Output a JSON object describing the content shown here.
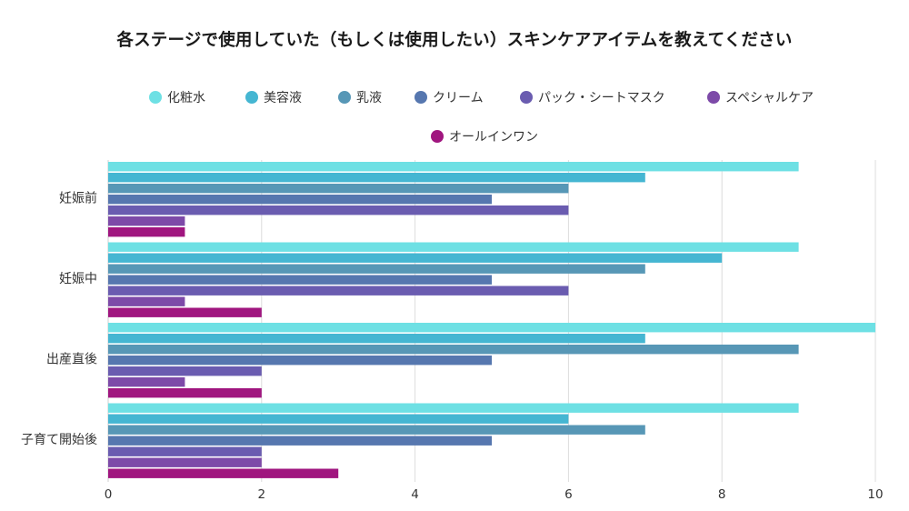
{
  "chart_data": {
    "type": "bar",
    "orientation": "horizontal",
    "title": "各ステージで使用していた（もしくは使用したい）スキンケアアイテムを教えてください",
    "categories": [
      "妊娠前",
      "妊娠中",
      "出産直後",
      "子育て開始後"
    ],
    "series": [
      {
        "name": "化粧水",
        "color": "#6ee0e4",
        "values": [
          9,
          9,
          10,
          9
        ]
      },
      {
        "name": "美容液",
        "color": "#45b6d2",
        "values": [
          7,
          8,
          7,
          6
        ]
      },
      {
        "name": "乳液",
        "color": "#5797b6",
        "values": [
          6,
          7,
          9,
          7
        ]
      },
      {
        "name": "クリーム",
        "color": "#5677af",
        "values": [
          5,
          5,
          5,
          5
        ]
      },
      {
        "name": "パック・シートマスク",
        "color": "#6a5cb0",
        "values": [
          6,
          6,
          2,
          2
        ]
      },
      {
        "name": "スペシャルケア",
        "color": "#7d4aa8",
        "values": [
          1,
          1,
          1,
          2
        ]
      },
      {
        "name": "オールインワン",
        "color": "#a0167f",
        "values": [
          1,
          2,
          2,
          3
        ]
      }
    ],
    "xlim": [
      0,
      10
    ],
    "xticks": [
      0,
      2,
      4,
      6,
      8,
      10
    ],
    "grid": true,
    "legend_position": "top"
  }
}
